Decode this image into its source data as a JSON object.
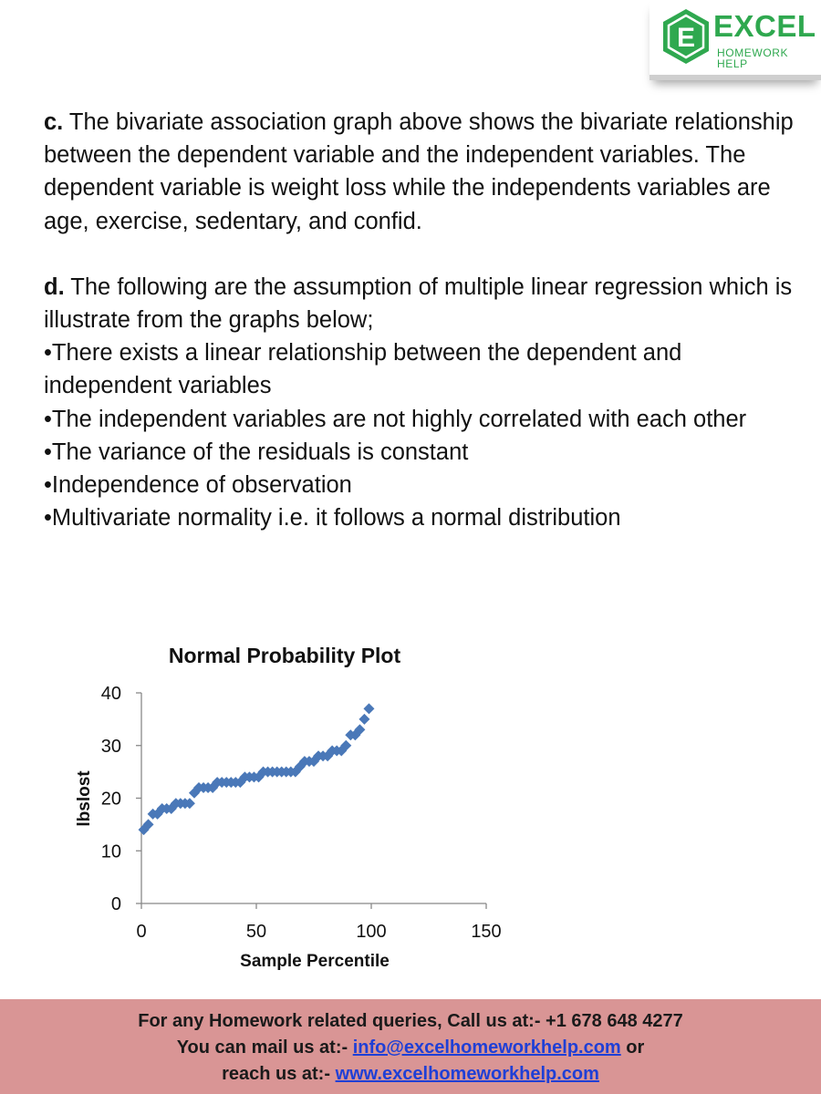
{
  "logo": {
    "letter": "E",
    "word": "EXCEL",
    "sub": "HOMEWORK HELP",
    "color": "#2fa84f"
  },
  "content": {
    "c": {
      "label": "c.",
      "text": " The bivariate association graph above shows the bivariate relationship between the dependent variable and the independent variables. The dependent variable is weight loss while the independents variables are age, exercise, sedentary, and confid."
    },
    "d": {
      "label": "d.",
      "text": " The following are the assumption of multiple linear regression which is illustrate from the graphs below;"
    },
    "bullets": [
      "•There exists a linear relationship between the dependent and independent variables",
      "•The independent variables are not highly correlated with each other",
      "•The variance of the residuals is constant",
      "•Independence of observation",
      "•Multivariate normality i.e. it follows a normal distribution"
    ]
  },
  "chart_data": {
    "type": "scatter",
    "title": "Normal Probability Plot",
    "xlabel": "Sample Percentile",
    "ylabel": "lbslost",
    "xlim": [
      0,
      150
    ],
    "ylim": [
      0,
      40
    ],
    "xticks": [
      0,
      50,
      100,
      150
    ],
    "yticks": [
      0,
      10,
      20,
      30,
      40
    ],
    "grid": false,
    "marker": "diamond",
    "color": "#4a78b8",
    "x": [
      1,
      3,
      5,
      7,
      9,
      11,
      13,
      15,
      17,
      19,
      21,
      23,
      25,
      27,
      29,
      31,
      33,
      35,
      37,
      39,
      41,
      43,
      45,
      47,
      49,
      51,
      53,
      55,
      57,
      59,
      61,
      63,
      65,
      67,
      69,
      71,
      73,
      75,
      77,
      79,
      81,
      83,
      85,
      87,
      89,
      91,
      93,
      95,
      97,
      99
    ],
    "y": [
      14,
      15,
      17,
      17,
      18,
      18,
      18,
      19,
      19,
      19,
      19,
      21,
      22,
      22,
      22,
      22,
      23,
      23,
      23,
      23,
      23,
      23,
      24,
      24,
      24,
      24,
      25,
      25,
      25,
      25,
      25,
      25,
      25,
      25,
      26,
      27,
      27,
      27,
      28,
      28,
      28,
      29,
      29,
      29,
      30,
      32,
      32,
      33,
      35,
      37
    ]
  },
  "footer": {
    "line1": "For any Homework related queries, Call us at:-  +1 678 648 4277",
    "line2_prefix": "You can mail us at:- ",
    "email": "info@excelhomeworkhelp.com",
    "line2_suffix": " or",
    "line3_prefix": "reach us at:- ",
    "website": "www.excelhomeworkhelp.com"
  }
}
